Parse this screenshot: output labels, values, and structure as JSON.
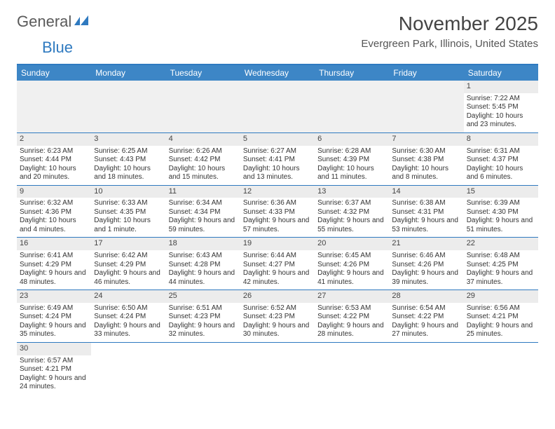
{
  "logo": {
    "text_general": "General",
    "text_blue": "Blue"
  },
  "title": "November 2025",
  "location": "Evergreen Park, Illinois, United States",
  "colors": {
    "header_bg": "#3d86c6",
    "header_text": "#ffffff",
    "rule": "#2f7ac0",
    "daynum_bg": "#ececec",
    "empty_bg": "#f0f0f0",
    "body_text": "#333333"
  },
  "weekdays": [
    "Sunday",
    "Monday",
    "Tuesday",
    "Wednesday",
    "Thursday",
    "Friday",
    "Saturday"
  ],
  "weeks": [
    [
      null,
      null,
      null,
      null,
      null,
      null,
      {
        "n": "1",
        "sr": "7:22 AM",
        "ss": "5:45 PM",
        "dl": "10 hours and 23 minutes."
      }
    ],
    [
      {
        "n": "2",
        "sr": "6:23 AM",
        "ss": "4:44 PM",
        "dl": "10 hours and 20 minutes."
      },
      {
        "n": "3",
        "sr": "6:25 AM",
        "ss": "4:43 PM",
        "dl": "10 hours and 18 minutes."
      },
      {
        "n": "4",
        "sr": "6:26 AM",
        "ss": "4:42 PM",
        "dl": "10 hours and 15 minutes."
      },
      {
        "n": "5",
        "sr": "6:27 AM",
        "ss": "4:41 PM",
        "dl": "10 hours and 13 minutes."
      },
      {
        "n": "6",
        "sr": "6:28 AM",
        "ss": "4:39 PM",
        "dl": "10 hours and 11 minutes."
      },
      {
        "n": "7",
        "sr": "6:30 AM",
        "ss": "4:38 PM",
        "dl": "10 hours and 8 minutes."
      },
      {
        "n": "8",
        "sr": "6:31 AM",
        "ss": "4:37 PM",
        "dl": "10 hours and 6 minutes."
      }
    ],
    [
      {
        "n": "9",
        "sr": "6:32 AM",
        "ss": "4:36 PM",
        "dl": "10 hours and 4 minutes."
      },
      {
        "n": "10",
        "sr": "6:33 AM",
        "ss": "4:35 PM",
        "dl": "10 hours and 1 minute."
      },
      {
        "n": "11",
        "sr": "6:34 AM",
        "ss": "4:34 PM",
        "dl": "9 hours and 59 minutes."
      },
      {
        "n": "12",
        "sr": "6:36 AM",
        "ss": "4:33 PM",
        "dl": "9 hours and 57 minutes."
      },
      {
        "n": "13",
        "sr": "6:37 AM",
        "ss": "4:32 PM",
        "dl": "9 hours and 55 minutes."
      },
      {
        "n": "14",
        "sr": "6:38 AM",
        "ss": "4:31 PM",
        "dl": "9 hours and 53 minutes."
      },
      {
        "n": "15",
        "sr": "6:39 AM",
        "ss": "4:30 PM",
        "dl": "9 hours and 51 minutes."
      }
    ],
    [
      {
        "n": "16",
        "sr": "6:41 AM",
        "ss": "4:29 PM",
        "dl": "9 hours and 48 minutes."
      },
      {
        "n": "17",
        "sr": "6:42 AM",
        "ss": "4:29 PM",
        "dl": "9 hours and 46 minutes."
      },
      {
        "n": "18",
        "sr": "6:43 AM",
        "ss": "4:28 PM",
        "dl": "9 hours and 44 minutes."
      },
      {
        "n": "19",
        "sr": "6:44 AM",
        "ss": "4:27 PM",
        "dl": "9 hours and 42 minutes."
      },
      {
        "n": "20",
        "sr": "6:45 AM",
        "ss": "4:26 PM",
        "dl": "9 hours and 41 minutes."
      },
      {
        "n": "21",
        "sr": "6:46 AM",
        "ss": "4:26 PM",
        "dl": "9 hours and 39 minutes."
      },
      {
        "n": "22",
        "sr": "6:48 AM",
        "ss": "4:25 PM",
        "dl": "9 hours and 37 minutes."
      }
    ],
    [
      {
        "n": "23",
        "sr": "6:49 AM",
        "ss": "4:24 PM",
        "dl": "9 hours and 35 minutes."
      },
      {
        "n": "24",
        "sr": "6:50 AM",
        "ss": "4:24 PM",
        "dl": "9 hours and 33 minutes."
      },
      {
        "n": "25",
        "sr": "6:51 AM",
        "ss": "4:23 PM",
        "dl": "9 hours and 32 minutes."
      },
      {
        "n": "26",
        "sr": "6:52 AM",
        "ss": "4:23 PM",
        "dl": "9 hours and 30 minutes."
      },
      {
        "n": "27",
        "sr": "6:53 AM",
        "ss": "4:22 PM",
        "dl": "9 hours and 28 minutes."
      },
      {
        "n": "28",
        "sr": "6:54 AM",
        "ss": "4:22 PM",
        "dl": "9 hours and 27 minutes."
      },
      {
        "n": "29",
        "sr": "6:56 AM",
        "ss": "4:21 PM",
        "dl": "9 hours and 25 minutes."
      }
    ],
    [
      {
        "n": "30",
        "sr": "6:57 AM",
        "ss": "4:21 PM",
        "dl": "9 hours and 24 minutes."
      },
      null,
      null,
      null,
      null,
      null,
      null
    ]
  ],
  "labels": {
    "sunrise": "Sunrise:",
    "sunset": "Sunset:",
    "daylight": "Daylight:"
  }
}
